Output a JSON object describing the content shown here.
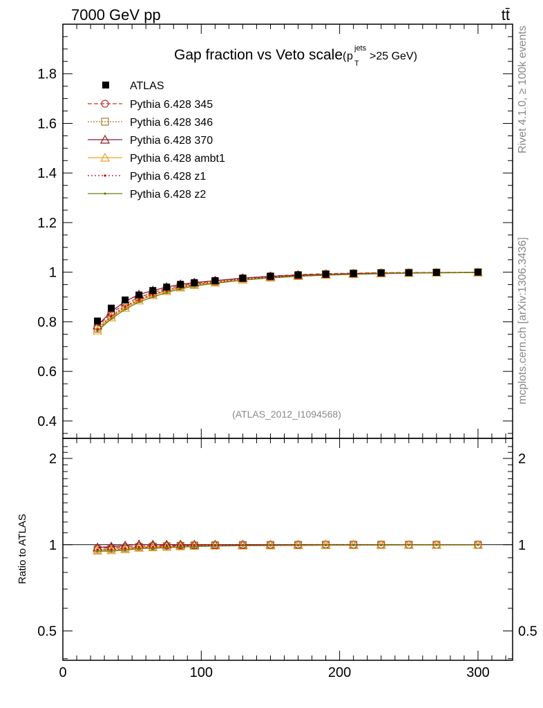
{
  "header": {
    "energy_label": "7000 GeV pp",
    "process_label": "tt̄"
  },
  "side_text": {
    "rivet": "Rivet 4.1.0, ≥ 100k events",
    "mcplots": "mcplots.cern.ch [arXiv:1306.3436]"
  },
  "chart_data": {
    "type": "line",
    "title": "Gap fraction vs Veto scale",
    "title_suffix": {
      "p": "p",
      "sup": "jets",
      "sub": "T",
      "cut": ">25 GeV)",
      "open": "("
    },
    "analysis_id": "(ATLAS_2012_I1094568)",
    "xlabel": "",
    "ylabel_main": "",
    "ylabel_ratio": "Ratio to ATLAS",
    "xlim": [
      0,
      325
    ],
    "ylim_main": [
      0.33,
      2.0
    ],
    "ylim_ratio": [
      0.395,
      2.35
    ],
    "x_ticks": [
      0,
      100,
      200,
      300
    ],
    "y_ticks_main": [
      0.4,
      0.6,
      0.8,
      1,
      1.2,
      1.4,
      1.6,
      1.8
    ],
    "y_tick_labels_main": [
      "0.4",
      "0.6",
      "0.8",
      "1",
      "1.2",
      "1.4",
      "1.6",
      "1.8"
    ],
    "y_ticks_ratio": [
      0.5,
      1,
      2
    ],
    "y_tick_labels_ratio": [
      "0.5",
      "1",
      "2"
    ],
    "x": [
      25,
      35,
      45,
      55,
      65,
      75,
      85,
      95,
      110,
      130,
      150,
      170,
      190,
      210,
      230,
      250,
      270,
      300
    ],
    "data": {
      "name": "ATLAS",
      "values": [
        0.803,
        0.855,
        0.888,
        0.908,
        0.926,
        0.94,
        0.951,
        0.958,
        0.966,
        0.976,
        0.984,
        0.989,
        0.992,
        0.995,
        0.997,
        0.998,
        0.999,
        1.0
      ]
    },
    "series": [
      {
        "name": "Pythia 6.428 345",
        "color": "#c03030",
        "dash": "6,3",
        "marker": "circle",
        "values": [
          0.78,
          0.835,
          0.872,
          0.898,
          0.918,
          0.934,
          0.946,
          0.955,
          0.965,
          0.976,
          0.984,
          0.99,
          0.994,
          0.996,
          0.998,
          0.999,
          0.999,
          1.0
        ]
      },
      {
        "name": "Pythia 6.428 346",
        "color": "#a87828",
        "dash": "2,2",
        "marker": "square",
        "values": [
          0.772,
          0.826,
          0.864,
          0.892,
          0.912,
          0.928,
          0.942,
          0.952,
          0.962,
          0.974,
          0.982,
          0.988,
          0.992,
          0.995,
          0.997,
          0.998,
          0.999,
          1.0
        ]
      },
      {
        "name": "Pythia 6.428 370",
        "color": "#8b1a2a",
        "dash": "",
        "marker": "triangle",
        "values": [
          0.785,
          0.842,
          0.882,
          0.91,
          0.926,
          0.94,
          0.951,
          0.958,
          0.966,
          0.976,
          0.983,
          0.988,
          0.991,
          0.994,
          0.996,
          0.997,
          0.998,
          0.999
        ]
      },
      {
        "name": "Pythia 6.428 ambt1",
        "color": "#f0a020",
        "dash": "",
        "marker": "triangle",
        "values": [
          0.765,
          0.818,
          0.856,
          0.886,
          0.907,
          0.924,
          0.938,
          0.948,
          0.958,
          0.969,
          0.978,
          0.984,
          0.989,
          0.992,
          0.995,
          0.997,
          0.998,
          0.999
        ]
      },
      {
        "name": "Pythia 6.428 z1",
        "color": "#cc0000",
        "dash": "2,3",
        "marker": "dot",
        "values": [
          0.77,
          0.822,
          0.86,
          0.889,
          0.909,
          0.926,
          0.94,
          0.95,
          0.96,
          0.972,
          0.98,
          0.986,
          0.99,
          0.993,
          0.996,
          0.997,
          0.998,
          0.999
        ]
      },
      {
        "name": "Pythia 6.428 z2",
        "color": "#6b7a10",
        "dash": "",
        "marker": "dot",
        "values": [
          0.762,
          0.812,
          0.85,
          0.88,
          0.9,
          0.918,
          0.933,
          0.944,
          0.955,
          0.968,
          0.977,
          0.983,
          0.988,
          0.991,
          0.994,
          0.996,
          0.997,
          0.999
        ]
      }
    ],
    "legend_position": "top-left"
  }
}
